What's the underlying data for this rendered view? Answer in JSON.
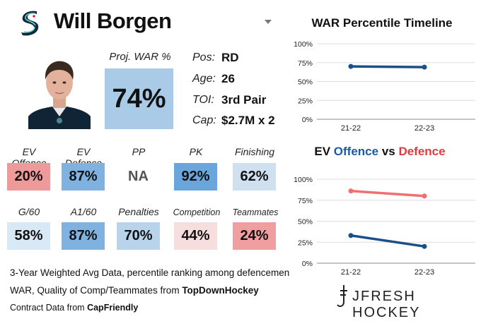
{
  "player": {
    "name": "Will Borgen",
    "team_logo": "kraken-logo",
    "photo": "player-headshot"
  },
  "proj_war": {
    "label": "Proj. WAR %",
    "value": "74%"
  },
  "info": [
    {
      "key": "Pos:",
      "value": "RD"
    },
    {
      "key": "Age:",
      "value": "26"
    },
    {
      "key": "TOI:",
      "value": "3rd Pair"
    },
    {
      "key": "Cap:",
      "value": "$2.7M x 2"
    }
  ],
  "tiles_row1": [
    {
      "label": "EV Offence",
      "value": "20%",
      "color": "#ee9a9a"
    },
    {
      "label": "EV Defence",
      "value": "87%",
      "color": "#7fb2e0"
    },
    {
      "label": "PP",
      "value": "NA",
      "color": "#ffffff"
    },
    {
      "label": "PK",
      "value": "92%",
      "color": "#6aa5db"
    },
    {
      "label": "Finishing",
      "value": "62%",
      "color": "#cfe1f1"
    }
  ],
  "tiles_row2": [
    {
      "label": "G/60",
      "value": "58%",
      "color": "#d8e8f5"
    },
    {
      "label": "A1/60",
      "value": "87%",
      "color": "#7fb2e0"
    },
    {
      "label": "Penalties",
      "value": "70%",
      "color": "#b8d3ec"
    },
    {
      "label": "Competition",
      "value": "44%",
      "color": "#f6dede"
    },
    {
      "label": "Teammates",
      "value": "24%",
      "color": "#ef9f9f"
    }
  ],
  "footer": {
    "line1": "3-Year Weighted Avg Data, percentile ranking among defencemen",
    "line2_prefix": "WAR, Quality of Comp/Teammates from ",
    "line2_bold": "TopDownHockey",
    "line3_prefix": "Contract Data from ",
    "line3_bold": "CapFriendly"
  },
  "brand": "JFRESH HOCKEY",
  "chart_data": [
    {
      "type": "line",
      "title": "WAR Percentile Timeline",
      "categories": [
        "21-22",
        "22-23"
      ],
      "ylim": [
        0,
        100
      ],
      "yticks": [
        "0%",
        "25%",
        "50%",
        "75%",
        "100%"
      ],
      "grid": true,
      "series": [
        {
          "values": [
            70,
            69
          ],
          "color": "#1a4f8a"
        }
      ]
    },
    {
      "type": "line",
      "title_parts": [
        "EV ",
        "Offence",
        " vs ",
        "Defence"
      ],
      "title_colors": [
        "#111111",
        "#1a5aa8",
        "#111111",
        "#e23b3b"
      ],
      "categories": [
        "21-22",
        "22-23"
      ],
      "ylim": [
        0,
        100
      ],
      "yticks": [
        "0%",
        "25%",
        "50%",
        "75%",
        "100%"
      ],
      "grid": true,
      "series": [
        {
          "values": [
            86,
            80
          ],
          "color": "#ee7070"
        },
        {
          "values": [
            33,
            20
          ],
          "color": "#1a4f8a"
        }
      ]
    }
  ]
}
